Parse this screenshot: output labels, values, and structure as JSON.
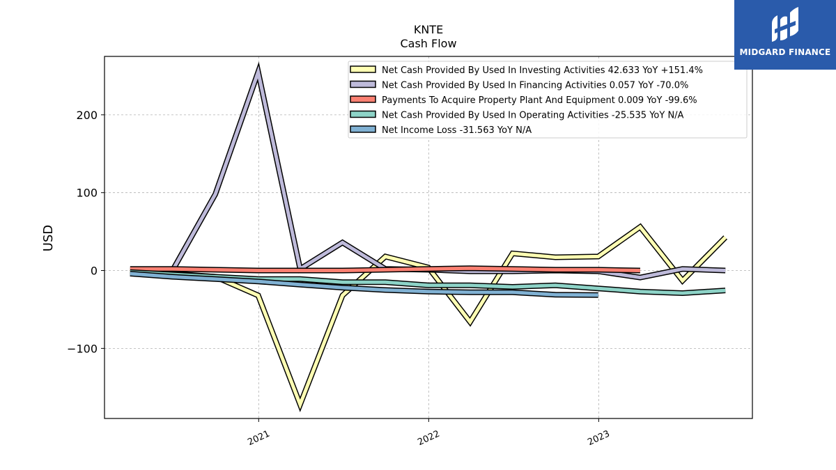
{
  "brand": {
    "name": "MIDGARD FINANCE",
    "color": "#2a5bab"
  },
  "chart_data": {
    "type": "line",
    "title": "KNTE",
    "subtitle": "Cash Flow",
    "xlabel": "",
    "ylabel": "USD",
    "ylim": [
      -190,
      275
    ],
    "xlim": [
      "2020-02-05",
      "2023-11-27"
    ],
    "yticks": [
      -100,
      0,
      100,
      200
    ],
    "ytick_labels": [
      "−100",
      "0",
      "100",
      "200"
    ],
    "xticks": [
      "2021-01-01",
      "2022-01-01",
      "2023-01-01"
    ],
    "xtick_labels": [
      "2021",
      "2022",
      "2023"
    ],
    "grid": true,
    "legend_position": "top-right",
    "series": [
      {
        "name": "Net Cash Provided By Used In Investing Activities",
        "legend_label": "Net Cash Provided By Used In Investing Activities  42.633 YoY +151.4%",
        "color": "#ffffb3",
        "x": [
          "2020-03-31",
          "2020-06-30",
          "2020-09-30",
          "2020-12-31",
          "2021-03-31",
          "2021-06-30",
          "2021-09-30",
          "2021-12-31",
          "2022-03-31",
          "2022-06-30",
          "2022-09-30",
          "2022-12-31",
          "2023-03-31",
          "2023-06-30",
          "2023-09-30"
        ],
        "values": [
          0,
          -4,
          -8,
          -32,
          -172,
          -32,
          18,
          4,
          -66,
          22,
          17,
          18,
          56,
          -13,
          42.633
        ]
      },
      {
        "name": "Net Cash Provided By Used In Financing Activities",
        "legend_label": "Net Cash Provided By Used In Financing Activities  0.057 YoY -70.0%",
        "color": "#bebada",
        "x": [
          "2020-06-30",
          "2020-09-30",
          "2020-12-31",
          "2021-03-31",
          "2021-06-30",
          "2021-09-30",
          "2021-12-31",
          "2022-03-31",
          "2022-06-30",
          "2022-09-30",
          "2022-12-31",
          "2023-03-31",
          "2023-06-30",
          "2023-09-30"
        ],
        "values": [
          0,
          98,
          255,
          2,
          36,
          2,
          1,
          -1,
          -1,
          0,
          -1,
          -9,
          2,
          0.057
        ]
      },
      {
        "name": "Payments To Acquire Property Plant And Equipment",
        "legend_label": "Payments To Acquire Property Plant And Equipment  0.009 YoY -99.6%",
        "color": "#fb8072",
        "x": [
          "2020-03-31",
          "2020-06-30",
          "2020-09-30",
          "2020-12-31",
          "2021-03-31",
          "2021-06-30",
          "2021-09-30",
          "2021-12-31",
          "2022-03-31",
          "2022-06-30",
          "2022-09-30",
          "2022-12-31",
          "2023-03-31"
        ],
        "values": [
          2,
          2,
          1,
          0,
          0,
          0,
          1,
          2,
          3,
          2,
          1,
          1,
          0.009
        ]
      },
      {
        "name": "Net Cash Provided By Used In Operating Activities",
        "legend_label": "Net Cash Provided By Used In Operating Activities  -25.535 YoY N/A",
        "color": "#8dd3c7",
        "x": [
          "2020-03-31",
          "2020-06-30",
          "2020-09-30",
          "2020-12-31",
          "2021-03-31",
          "2021-06-30",
          "2021-09-30",
          "2021-12-31",
          "2022-03-31",
          "2022-06-30",
          "2022-09-30",
          "2022-12-31",
          "2023-03-31",
          "2023-06-30",
          "2023-09-30"
        ],
        "values": [
          -2,
          -5,
          -8,
          -11,
          -11,
          -15,
          -15,
          -19,
          -19,
          -21,
          -19,
          -23,
          -27,
          -29,
          -25.535
        ]
      },
      {
        "name": "Net Income Loss",
        "legend_label": "Net Income Loss  -31.563 YoY N/A",
        "color": "#80b1d3",
        "x": [
          "2020-03-31",
          "2020-06-30",
          "2020-09-30",
          "2020-12-31",
          "2021-03-31",
          "2021-06-30",
          "2021-09-30",
          "2021-12-31",
          "2022-03-31",
          "2022-06-30",
          "2022-09-30",
          "2022-12-31"
        ],
        "values": [
          -4,
          -8,
          -11,
          -14,
          -18,
          -22,
          -25,
          -27,
          -28,
          -28,
          -31,
          -31.563
        ]
      }
    ]
  }
}
